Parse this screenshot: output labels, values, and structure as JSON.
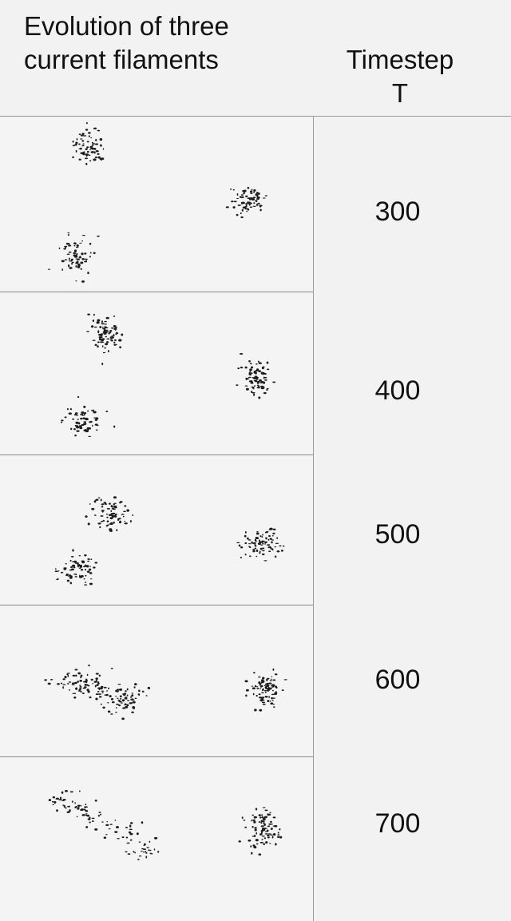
{
  "header": {
    "title_line1": "Evolution of three",
    "title_line2": "current filaments",
    "column_line1": "Timestep",
    "column_line2": "T"
  },
  "rows": [
    {
      "timestep": "300"
    },
    {
      "timestep": "400"
    },
    {
      "timestep": "500"
    },
    {
      "timestep": "600"
    },
    {
      "timestep": "700"
    }
  ]
}
